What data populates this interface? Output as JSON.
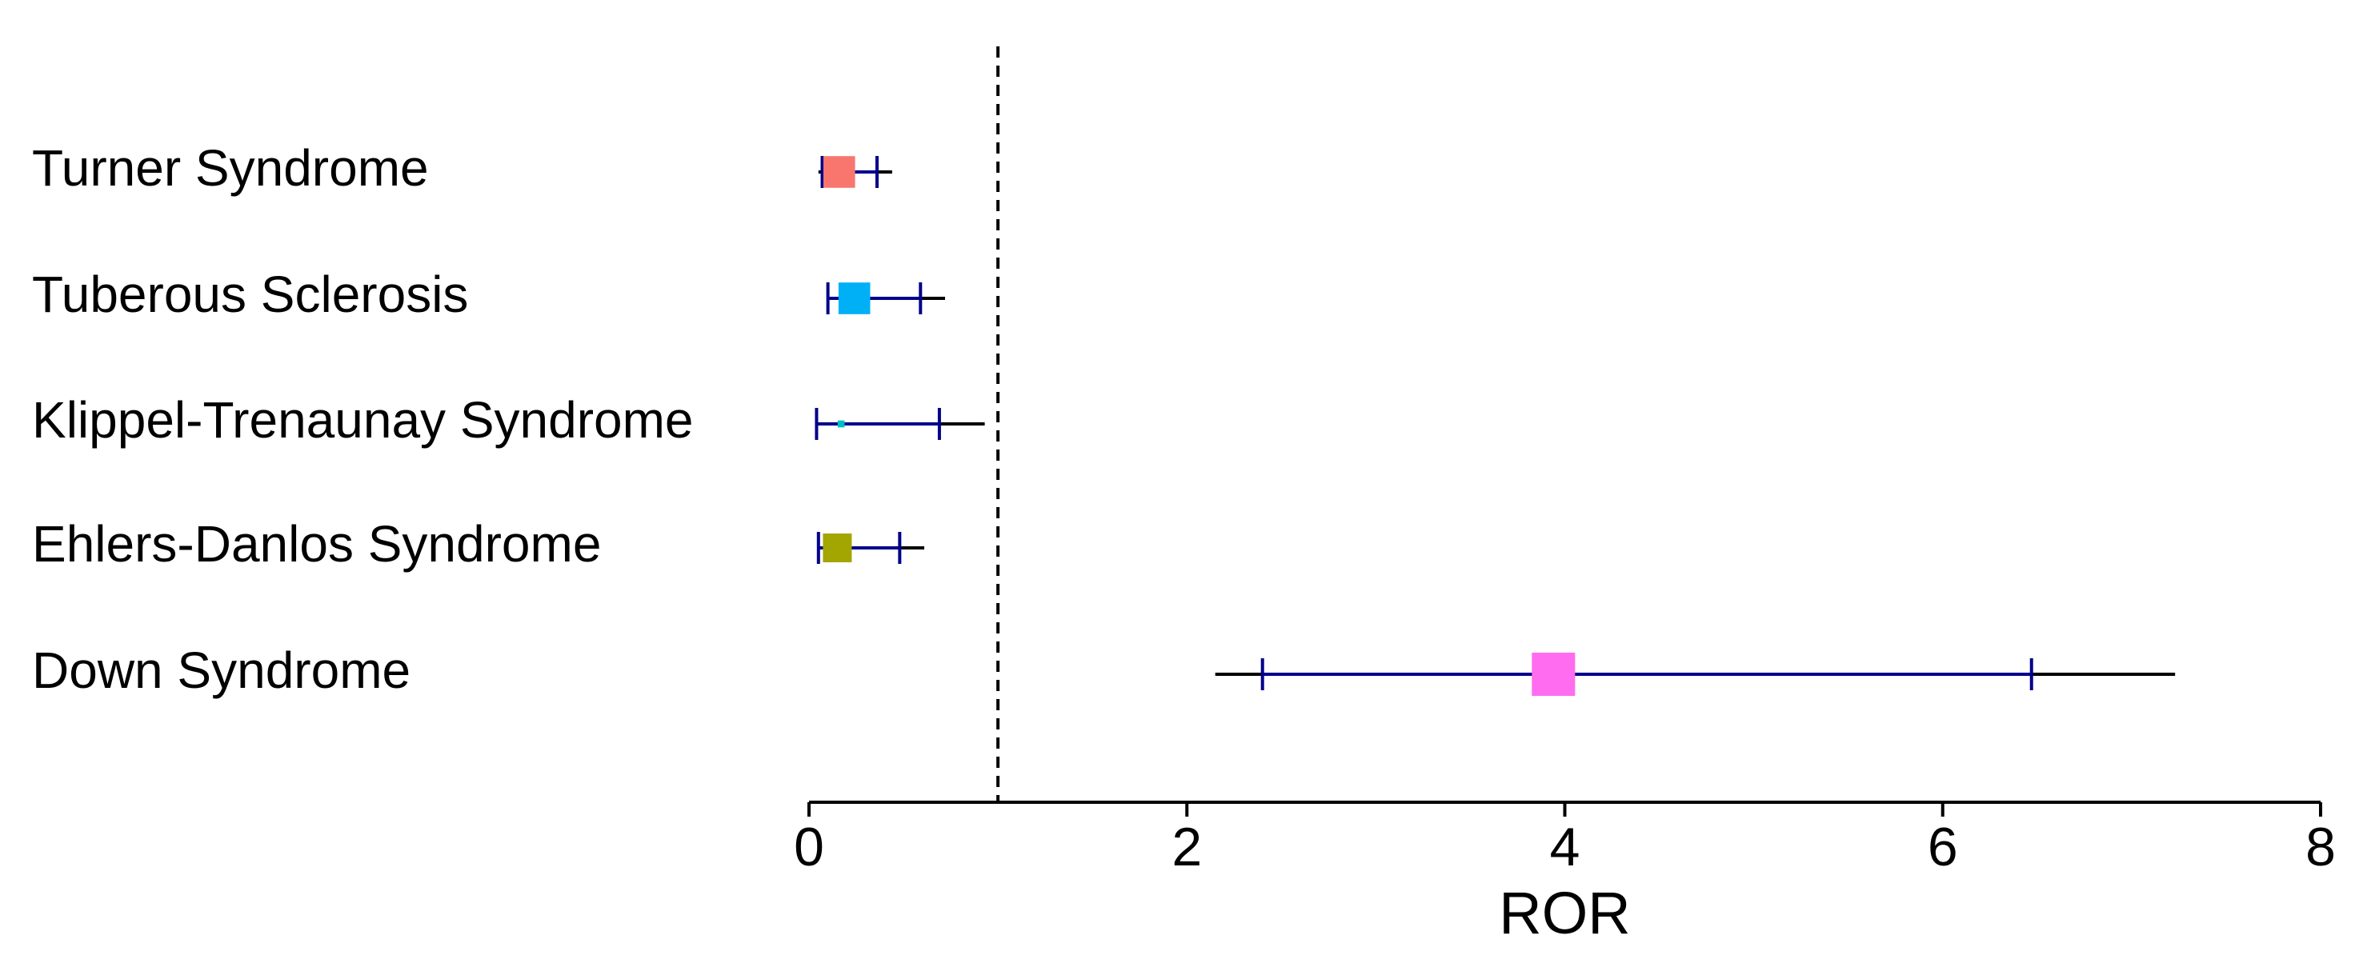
{
  "chart_data": {
    "type": "forest",
    "xlabel": "ROR",
    "xlim": [
      0,
      8
    ],
    "xticks": [
      0,
      2,
      4,
      6,
      8
    ],
    "reference_line": 1,
    "grid": false,
    "ci_outer_color": "#000000",
    "ci_inner_color": "#00008b",
    "rows": [
      {
        "label": "Turner Syndrome",
        "estimate": 0.16,
        "ci_lower": 0.05,
        "ci_upper": 0.44,
        "inner_lower": 0.07,
        "inner_upper": 0.36,
        "weight": 0.55,
        "color": "#f8766d"
      },
      {
        "label": "Tuberous Sclerosis",
        "estimate": 0.24,
        "ci_lower": 0.1,
        "ci_upper": 0.72,
        "inner_lower": 0.1,
        "inner_upper": 0.59,
        "weight": 0.55,
        "color": "#00b0f6"
      },
      {
        "label": "Klippel-Trenaunay Syndrome",
        "estimate": 0.17,
        "ci_lower": 0.04,
        "ci_upper": 0.93,
        "inner_lower": 0.04,
        "inner_upper": 0.69,
        "weight": 0.12,
        "color": "#00bfc4"
      },
      {
        "label": "Ehlers-Danlos Syndrome",
        "estimate": 0.15,
        "ci_lower": 0.05,
        "ci_upper": 0.61,
        "inner_lower": 0.05,
        "inner_upper": 0.48,
        "weight": 0.5,
        "color": "#a3a500"
      },
      {
        "label": "Down Syndrome",
        "estimate": 3.94,
        "ci_lower": 2.15,
        "ci_upper": 7.23,
        "inner_lower": 2.4,
        "inner_upper": 6.47,
        "weight": 0.75,
        "color": "#ff6cf0"
      }
    ]
  }
}
